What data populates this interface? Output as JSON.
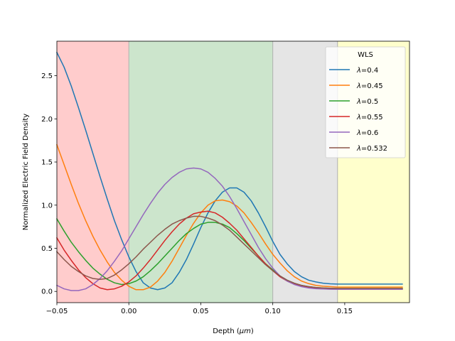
{
  "chart_data": {
    "type": "line",
    "title": "",
    "xlabel": "Depth (",
    "xlabel_unit": "μm",
    "xlabel_close": ")",
    "ylabel": "Normalized Electric Field Density",
    "xlim": [
      -0.05,
      0.195
    ],
    "ylim": [
      -0.13,
      2.9
    ],
    "xticks": [
      -0.05,
      0.0,
      0.05,
      0.1,
      0.15
    ],
    "xtick_labels": [
      "−0.05",
      "0.00",
      "0.05",
      "0.10",
      "0.15"
    ],
    "yticks": [
      0.0,
      0.5,
      1.0,
      1.5,
      2.0,
      2.5
    ],
    "ytick_labels": [
      "0.0",
      "0.5",
      "1.0",
      "1.5",
      "2.0",
      "2.5"
    ],
    "grid": false,
    "regions": [
      {
        "x0": -0.05,
        "x1": 0.0,
        "color": "#ffcccc"
      },
      {
        "x0": 0.0,
        "x1": 0.1,
        "color": "#cce5cc"
      },
      {
        "x0": 0.1,
        "x1": 0.145,
        "color": "#e5e5e5"
      },
      {
        "x0": 0.145,
        "x1": 0.195,
        "color": "#ffffcc"
      }
    ],
    "legend": {
      "title": "WLS",
      "placement": "top-right"
    },
    "series": [
      {
        "name": "λ=0.4",
        "color": "#1f77b4",
        "points": [
          [
            -0.05,
            2.77
          ],
          [
            -0.045,
            2.6
          ],
          [
            -0.04,
            2.38
          ],
          [
            -0.035,
            2.13
          ],
          [
            -0.03,
            1.87
          ],
          [
            -0.025,
            1.6
          ],
          [
            -0.02,
            1.33
          ],
          [
            -0.015,
            1.07
          ],
          [
            -0.01,
            0.82
          ],
          [
            -0.005,
            0.6
          ],
          [
            0.0,
            0.4
          ],
          [
            0.005,
            0.23
          ],
          [
            0.01,
            0.1
          ],
          [
            0.015,
            0.04
          ],
          [
            0.02,
            0.02
          ],
          [
            0.025,
            0.04
          ],
          [
            0.03,
            0.1
          ],
          [
            0.035,
            0.22
          ],
          [
            0.04,
            0.37
          ],
          [
            0.045,
            0.55
          ],
          [
            0.05,
            0.74
          ],
          [
            0.055,
            0.91
          ],
          [
            0.06,
            1.05
          ],
          [
            0.065,
            1.15
          ],
          [
            0.07,
            1.2
          ],
          [
            0.075,
            1.2
          ],
          [
            0.08,
            1.15
          ],
          [
            0.085,
            1.05
          ],
          [
            0.09,
            0.91
          ],
          [
            0.095,
            0.75
          ],
          [
            0.1,
            0.58
          ],
          [
            0.105,
            0.43
          ],
          [
            0.11,
            0.32
          ],
          [
            0.115,
            0.23
          ],
          [
            0.12,
            0.17
          ],
          [
            0.125,
            0.13
          ],
          [
            0.13,
            0.11
          ],
          [
            0.135,
            0.095
          ],
          [
            0.14,
            0.088
          ],
          [
            0.145,
            0.085
          ],
          [
            0.15,
            0.085
          ],
          [
            0.16,
            0.085
          ],
          [
            0.17,
            0.085
          ],
          [
            0.18,
            0.085
          ],
          [
            0.19,
            0.085
          ]
        ]
      },
      {
        "name": "λ=0.45",
        "color": "#ff7f0e",
        "points": [
          [
            -0.05,
            1.7
          ],
          [
            -0.045,
            1.47
          ],
          [
            -0.04,
            1.24
          ],
          [
            -0.035,
            1.02
          ],
          [
            -0.03,
            0.82
          ],
          [
            -0.025,
            0.64
          ],
          [
            -0.02,
            0.48
          ],
          [
            -0.015,
            0.34
          ],
          [
            -0.01,
            0.22
          ],
          [
            -0.005,
            0.13
          ],
          [
            0.0,
            0.06
          ],
          [
            0.005,
            0.02
          ],
          [
            0.01,
            0.02
          ],
          [
            0.015,
            0.05
          ],
          [
            0.02,
            0.12
          ],
          [
            0.025,
            0.22
          ],
          [
            0.03,
            0.35
          ],
          [
            0.035,
            0.5
          ],
          [
            0.04,
            0.65
          ],
          [
            0.045,
            0.79
          ],
          [
            0.05,
            0.91
          ],
          [
            0.055,
            1.0
          ],
          [
            0.06,
            1.05
          ],
          [
            0.065,
            1.06
          ],
          [
            0.07,
            1.04
          ],
          [
            0.075,
            0.99
          ],
          [
            0.08,
            0.91
          ],
          [
            0.085,
            0.8
          ],
          [
            0.09,
            0.68
          ],
          [
            0.095,
            0.55
          ],
          [
            0.1,
            0.43
          ],
          [
            0.105,
            0.33
          ],
          [
            0.11,
            0.24
          ],
          [
            0.115,
            0.17
          ],
          [
            0.12,
            0.12
          ],
          [
            0.125,
            0.09
          ],
          [
            0.13,
            0.07
          ],
          [
            0.135,
            0.06
          ],
          [
            0.14,
            0.055
          ],
          [
            0.145,
            0.05
          ],
          [
            0.15,
            0.05
          ],
          [
            0.16,
            0.05
          ],
          [
            0.17,
            0.05
          ],
          [
            0.18,
            0.05
          ],
          [
            0.19,
            0.05
          ]
        ]
      },
      {
        "name": "λ=0.5",
        "color": "#2ca02c",
        "points": [
          [
            -0.05,
            0.84
          ],
          [
            -0.045,
            0.7
          ],
          [
            -0.04,
            0.57
          ],
          [
            -0.035,
            0.46
          ],
          [
            -0.03,
            0.36
          ],
          [
            -0.025,
            0.27
          ],
          [
            -0.02,
            0.2
          ],
          [
            -0.015,
            0.14
          ],
          [
            -0.01,
            0.1
          ],
          [
            -0.005,
            0.08
          ],
          [
            0.0,
            0.09
          ],
          [
            0.005,
            0.12
          ],
          [
            0.01,
            0.17
          ],
          [
            0.015,
            0.24
          ],
          [
            0.02,
            0.32
          ],
          [
            0.025,
            0.41
          ],
          [
            0.03,
            0.5
          ],
          [
            0.035,
            0.59
          ],
          [
            0.04,
            0.67
          ],
          [
            0.045,
            0.73
          ],
          [
            0.05,
            0.78
          ],
          [
            0.055,
            0.8
          ],
          [
            0.06,
            0.8
          ],
          [
            0.065,
            0.78
          ],
          [
            0.07,
            0.74
          ],
          [
            0.075,
            0.67
          ],
          [
            0.08,
            0.59
          ],
          [
            0.085,
            0.5
          ],
          [
            0.09,
            0.41
          ],
          [
            0.095,
            0.32
          ],
          [
            0.1,
            0.25
          ],
          [
            0.105,
            0.18
          ],
          [
            0.11,
            0.13
          ],
          [
            0.115,
            0.095
          ],
          [
            0.12,
            0.07
          ],
          [
            0.125,
            0.055
          ],
          [
            0.13,
            0.045
          ],
          [
            0.135,
            0.04
          ],
          [
            0.14,
            0.037
          ],
          [
            0.145,
            0.035
          ],
          [
            0.15,
            0.035
          ],
          [
            0.16,
            0.035
          ],
          [
            0.17,
            0.035
          ],
          [
            0.18,
            0.035
          ],
          [
            0.19,
            0.035
          ]
        ]
      },
      {
        "name": "λ=0.55",
        "color": "#d62728",
        "points": [
          [
            -0.05,
            0.62
          ],
          [
            -0.045,
            0.48
          ],
          [
            -0.04,
            0.36
          ],
          [
            -0.035,
            0.25
          ],
          [
            -0.03,
            0.16
          ],
          [
            -0.025,
            0.09
          ],
          [
            -0.02,
            0.04
          ],
          [
            -0.015,
            0.02
          ],
          [
            -0.01,
            0.03
          ],
          [
            -0.005,
            0.06
          ],
          [
            0.0,
            0.11
          ],
          [
            0.005,
            0.18
          ],
          [
            0.01,
            0.27
          ],
          [
            0.015,
            0.37
          ],
          [
            0.02,
            0.48
          ],
          [
            0.025,
            0.59
          ],
          [
            0.03,
            0.69
          ],
          [
            0.035,
            0.78
          ],
          [
            0.04,
            0.85
          ],
          [
            0.045,
            0.9
          ],
          [
            0.05,
            0.92
          ],
          [
            0.055,
            0.93
          ],
          [
            0.06,
            0.91
          ],
          [
            0.065,
            0.86
          ],
          [
            0.07,
            0.79
          ],
          [
            0.075,
            0.71
          ],
          [
            0.08,
            0.61
          ],
          [
            0.085,
            0.51
          ],
          [
            0.09,
            0.41
          ],
          [
            0.095,
            0.32
          ],
          [
            0.1,
            0.24
          ],
          [
            0.105,
            0.17
          ],
          [
            0.11,
            0.12
          ],
          [
            0.115,
            0.085
          ],
          [
            0.12,
            0.06
          ],
          [
            0.125,
            0.045
          ],
          [
            0.13,
            0.035
          ],
          [
            0.135,
            0.03
          ],
          [
            0.14,
            0.027
          ],
          [
            0.145,
            0.025
          ],
          [
            0.15,
            0.025
          ],
          [
            0.16,
            0.025
          ],
          [
            0.17,
            0.025
          ],
          [
            0.18,
            0.025
          ],
          [
            0.19,
            0.025
          ]
        ]
      },
      {
        "name": "λ=0.6",
        "color": "#9467bd",
        "points": [
          [
            -0.05,
            0.07
          ],
          [
            -0.045,
            0.03
          ],
          [
            -0.04,
            0.01
          ],
          [
            -0.035,
            0.01
          ],
          [
            -0.03,
            0.03
          ],
          [
            -0.025,
            0.08
          ],
          [
            -0.02,
            0.15
          ],
          [
            -0.015,
            0.24
          ],
          [
            -0.01,
            0.35
          ],
          [
            -0.005,
            0.47
          ],
          [
            0.0,
            0.61
          ],
          [
            0.005,
            0.75
          ],
          [
            0.01,
            0.89
          ],
          [
            0.015,
            1.02
          ],
          [
            0.02,
            1.14
          ],
          [
            0.025,
            1.24
          ],
          [
            0.03,
            1.32
          ],
          [
            0.035,
            1.38
          ],
          [
            0.04,
            1.42
          ],
          [
            0.045,
            1.43
          ],
          [
            0.05,
            1.42
          ],
          [
            0.055,
            1.38
          ],
          [
            0.06,
            1.31
          ],
          [
            0.065,
            1.22
          ],
          [
            0.07,
            1.1
          ],
          [
            0.075,
            0.96
          ],
          [
            0.08,
            0.81
          ],
          [
            0.085,
            0.66
          ],
          [
            0.09,
            0.51
          ],
          [
            0.095,
            0.38
          ],
          [
            0.1,
            0.27
          ],
          [
            0.105,
            0.18
          ],
          [
            0.11,
            0.12
          ],
          [
            0.115,
            0.08
          ],
          [
            0.12,
            0.055
          ],
          [
            0.125,
            0.04
          ],
          [
            0.13,
            0.032
          ],
          [
            0.135,
            0.028
          ],
          [
            0.14,
            0.025
          ],
          [
            0.145,
            0.024
          ],
          [
            0.15,
            0.024
          ],
          [
            0.16,
            0.024
          ],
          [
            0.17,
            0.024
          ],
          [
            0.18,
            0.024
          ],
          [
            0.19,
            0.024
          ]
        ]
      },
      {
        "name": "λ=0.532",
        "color": "#8c564b",
        "points": [
          [
            -0.05,
            0.46
          ],
          [
            -0.045,
            0.37
          ],
          [
            -0.04,
            0.29
          ],
          [
            -0.035,
            0.23
          ],
          [
            -0.03,
            0.18
          ],
          [
            -0.025,
            0.15
          ],
          [
            -0.02,
            0.14
          ],
          [
            -0.015,
            0.15
          ],
          [
            -0.01,
            0.19
          ],
          [
            -0.005,
            0.25
          ],
          [
            0.0,
            0.32
          ],
          [
            0.005,
            0.4
          ],
          [
            0.01,
            0.49
          ],
          [
            0.015,
            0.57
          ],
          [
            0.02,
            0.65
          ],
          [
            0.025,
            0.72
          ],
          [
            0.03,
            0.78
          ],
          [
            0.035,
            0.82
          ],
          [
            0.04,
            0.85
          ],
          [
            0.045,
            0.87
          ],
          [
            0.05,
            0.87
          ],
          [
            0.055,
            0.85
          ],
          [
            0.06,
            0.82
          ],
          [
            0.065,
            0.77
          ],
          [
            0.07,
            0.71
          ],
          [
            0.075,
            0.63
          ],
          [
            0.08,
            0.55
          ],
          [
            0.085,
            0.47
          ],
          [
            0.09,
            0.39
          ],
          [
            0.095,
            0.31
          ],
          [
            0.1,
            0.24
          ],
          [
            0.105,
            0.18
          ],
          [
            0.11,
            0.13
          ],
          [
            0.115,
            0.095
          ],
          [
            0.12,
            0.07
          ],
          [
            0.125,
            0.055
          ],
          [
            0.13,
            0.045
          ],
          [
            0.135,
            0.04
          ],
          [
            0.14,
            0.037
          ],
          [
            0.145,
            0.035
          ],
          [
            0.15,
            0.035
          ],
          [
            0.16,
            0.035
          ],
          [
            0.17,
            0.035
          ],
          [
            0.18,
            0.035
          ],
          [
            0.19,
            0.035
          ]
        ]
      }
    ]
  }
}
